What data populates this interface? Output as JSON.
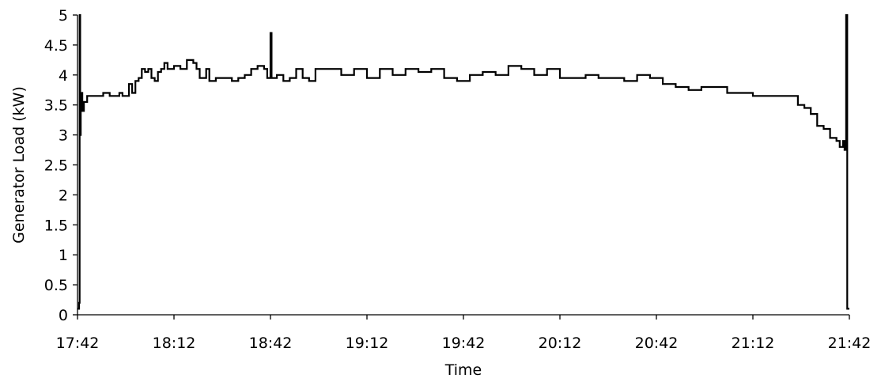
{
  "chart_data": {
    "type": "line",
    "title": "",
    "xlabel": "Time",
    "ylabel": "Generator Load (kW)",
    "xlim": [
      "17:42",
      "21:42"
    ],
    "ylim": [
      0,
      5
    ],
    "x_ticks": [
      "17:42",
      "18:12",
      "18:42",
      "19:12",
      "19:42",
      "20:12",
      "20:42",
      "21:12",
      "21:42"
    ],
    "y_ticks": [
      "0",
      "0.5",
      "1",
      "1.5",
      "2",
      "2.5",
      "3",
      "3.5",
      "4",
      "4.5",
      "5"
    ],
    "grid": false,
    "legend": "none",
    "line_color": "#000000",
    "series": [
      {
        "values_description_free": true,
        "points": [
          [
            "17:42",
            0.1
          ],
          [
            "17:42:30",
            0.2
          ],
          [
            "17:42:40",
            5.0
          ],
          [
            "17:42:50",
            3.0
          ],
          [
            "17:43",
            3.7
          ],
          [
            "17:43:30",
            3.4
          ],
          [
            "17:44",
            3.55
          ],
          [
            "17:45",
            3.65
          ],
          [
            "17:48",
            3.65
          ],
          [
            "17:50",
            3.7
          ],
          [
            "17:52",
            3.65
          ],
          [
            "17:55",
            3.7
          ],
          [
            "17:56",
            3.65
          ],
          [
            "17:58",
            3.85
          ],
          [
            "17:59",
            3.7
          ],
          [
            "18:00",
            3.9
          ],
          [
            "18:01",
            3.95
          ],
          [
            "18:02",
            4.1
          ],
          [
            "18:03",
            4.05
          ],
          [
            "18:04",
            4.1
          ],
          [
            "18:05",
            3.95
          ],
          [
            "18:06",
            3.9
          ],
          [
            "18:07",
            4.05
          ],
          [
            "18:08",
            4.1
          ],
          [
            "18:09",
            4.2
          ],
          [
            "18:10",
            4.1
          ],
          [
            "18:12",
            4.15
          ],
          [
            "18:14",
            4.1
          ],
          [
            "18:16",
            4.25
          ],
          [
            "18:18",
            4.2
          ],
          [
            "18:19",
            4.1
          ],
          [
            "18:20",
            3.95
          ],
          [
            "18:22",
            4.1
          ],
          [
            "18:23",
            3.9
          ],
          [
            "18:25",
            3.95
          ],
          [
            "18:28",
            3.95
          ],
          [
            "18:30",
            3.9
          ],
          [
            "18:32",
            3.95
          ],
          [
            "18:34",
            4.0
          ],
          [
            "18:36",
            4.1
          ],
          [
            "18:38",
            4.15
          ],
          [
            "18:40",
            4.1
          ],
          [
            "18:41",
            3.95
          ],
          [
            "18:42",
            4.7
          ],
          [
            "18:42:20",
            3.95
          ],
          [
            "18:44",
            4.0
          ],
          [
            "18:46",
            3.9
          ],
          [
            "18:48",
            3.95
          ],
          [
            "18:50",
            4.1
          ],
          [
            "18:52",
            3.95
          ],
          [
            "18:54",
            3.9
          ],
          [
            "18:56",
            4.1
          ],
          [
            "19:00",
            4.1
          ],
          [
            "19:04",
            4.0
          ],
          [
            "19:08",
            4.1
          ],
          [
            "19:12",
            3.95
          ],
          [
            "19:16",
            4.1
          ],
          [
            "19:20",
            4.0
          ],
          [
            "19:24",
            4.1
          ],
          [
            "19:28",
            4.05
          ],
          [
            "19:32",
            4.1
          ],
          [
            "19:36",
            3.95
          ],
          [
            "19:40",
            3.9
          ],
          [
            "19:44",
            4.0
          ],
          [
            "19:48",
            4.05
          ],
          [
            "19:52",
            4.0
          ],
          [
            "19:56",
            4.15
          ],
          [
            "20:00",
            4.1
          ],
          [
            "20:04",
            4.0
          ],
          [
            "20:08",
            4.1
          ],
          [
            "20:12",
            3.95
          ],
          [
            "20:16",
            3.95
          ],
          [
            "20:20",
            4.0
          ],
          [
            "20:24",
            3.95
          ],
          [
            "20:28",
            3.95
          ],
          [
            "20:32",
            3.9
          ],
          [
            "20:36",
            4.0
          ],
          [
            "20:40",
            3.95
          ],
          [
            "20:44",
            3.85
          ],
          [
            "20:48",
            3.8
          ],
          [
            "20:52",
            3.75
          ],
          [
            "20:56",
            3.8
          ],
          [
            "21:00",
            3.8
          ],
          [
            "21:04",
            3.7
          ],
          [
            "21:08",
            3.7
          ],
          [
            "21:12",
            3.65
          ],
          [
            "21:16",
            3.65
          ],
          [
            "21:20",
            3.65
          ],
          [
            "21:24",
            3.65
          ],
          [
            "21:26",
            3.5
          ],
          [
            "21:28",
            3.45
          ],
          [
            "21:30",
            3.35
          ],
          [
            "21:32",
            3.15
          ],
          [
            "21:34",
            3.1
          ],
          [
            "21:36",
            2.95
          ],
          [
            "21:38",
            2.9
          ],
          [
            "21:39",
            2.8
          ],
          [
            "21:40",
            2.9
          ],
          [
            "21:40:30",
            2.75
          ],
          [
            "21:41",
            5.0
          ],
          [
            "21:41:20",
            0.1
          ],
          [
            "21:42",
            0.1
          ]
        ]
      }
    ]
  }
}
